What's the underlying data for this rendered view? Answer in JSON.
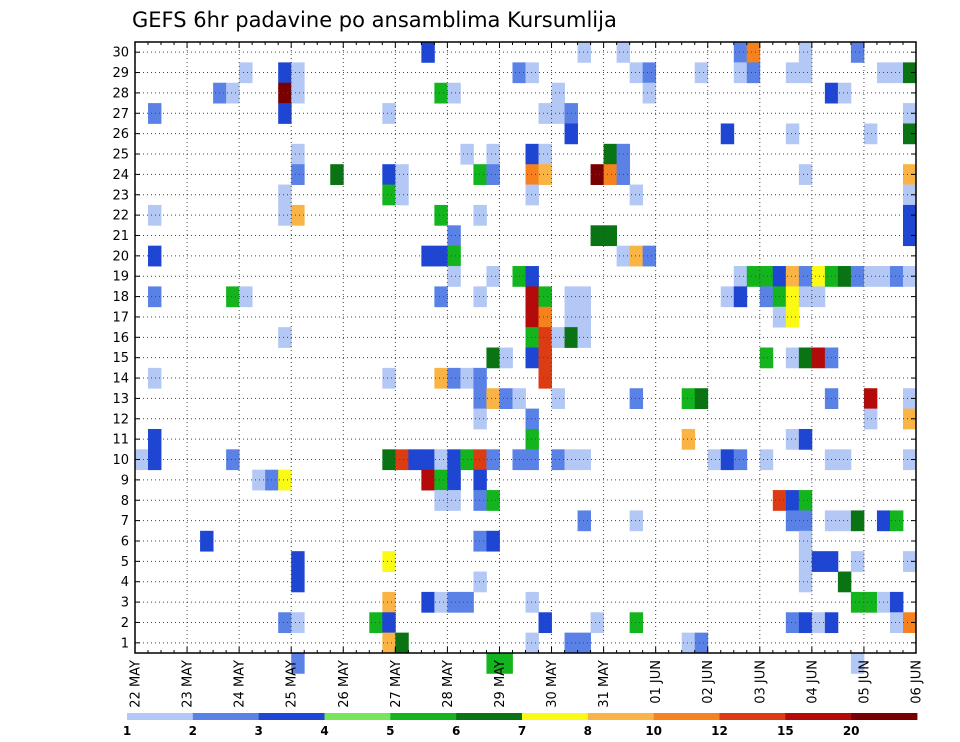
{
  "chart_data": {
    "type": "heatmap",
    "title": "GEFS 6hr padavine po ansamblima Kursumlija",
    "xlabel": "",
    "ylabel": "",
    "x_tick_labels": [
      "22 MAY",
      "23 MAY",
      "24 MAY",
      "25 MAY",
      "26 MAY",
      "27 MAY",
      "28 MAY",
      "29 MAY",
      "30 MAY",
      "31 MAY",
      "01 JUN",
      "02 JUN",
      "03 JUN",
      "04 JUN",
      "05 JUN",
      "06 JUN"
    ],
    "y_tick_labels": [
      "1",
      "2",
      "3",
      "4",
      "5",
      "6",
      "7",
      "8",
      "9",
      "10",
      "11",
      "12",
      "13",
      "14",
      "15",
      "16",
      "17",
      "18",
      "19",
      "20",
      "21",
      "22",
      "23",
      "24",
      "25",
      "26",
      "27",
      "28",
      "29",
      "30"
    ],
    "ylim": [
      0.5,
      30.5
    ],
    "time_steps": 60,
    "grid": true,
    "legend_placement": "bottom",
    "legend": {
      "levels": [
        "1",
        "2",
        "3",
        "4",
        "5",
        "6",
        "7",
        "8",
        "10",
        "12",
        "15",
        "20"
      ],
      "colors": [
        "#b4c8f5",
        "#5a82e6",
        "#1e46d2",
        "#78e65a",
        "#14b41e",
        "#0a7314",
        "#fafa14",
        "#fab446",
        "#f5821e",
        "#dc3c14",
        "#b40a0a",
        "#780000"
      ]
    },
    "cells_note": "each cell: [time step index (0 = 22 MAY 00z, 6-hourly), ensemble member, colour class 1-12]",
    "cells": [
      [
        37,
        30,
        1
      ],
      [
        22,
        30,
        3
      ],
      [
        34,
        30,
        1
      ],
      [
        46,
        30,
        2
      ],
      [
        47,
        30,
        9
      ],
      [
        51,
        30,
        1
      ],
      [
        55,
        30,
        2
      ],
      [
        8,
        29,
        1
      ],
      [
        11,
        29,
        3
      ],
      [
        12,
        29,
        1
      ],
      [
        29,
        29,
        2
      ],
      [
        30,
        29,
        1
      ],
      [
        38,
        29,
        1
      ],
      [
        39,
        29,
        2
      ],
      [
        43,
        29,
        1
      ],
      [
        46,
        29,
        1
      ],
      [
        47,
        29,
        2
      ],
      [
        50,
        29,
        1
      ],
      [
        51,
        29,
        1
      ],
      [
        57,
        29,
        1
      ],
      [
        58,
        29,
        1
      ],
      [
        59,
        29,
        6
      ],
      [
        6,
        28,
        2
      ],
      [
        7,
        28,
        1
      ],
      [
        11,
        28,
        12
      ],
      [
        12,
        28,
        1
      ],
      [
        23,
        28,
        5
      ],
      [
        24,
        28,
        1
      ],
      [
        32,
        28,
        1
      ],
      [
        39,
        28,
        1
      ],
      [
        53,
        28,
        3
      ],
      [
        54,
        28,
        1
      ],
      [
        1,
        27,
        2
      ],
      [
        11,
        27,
        3
      ],
      [
        19,
        27,
        1
      ],
      [
        31,
        27,
        1
      ],
      [
        32,
        27,
        1
      ],
      [
        33,
        27,
        2
      ],
      [
        59,
        27,
        1
      ],
      [
        33,
        26,
        3
      ],
      [
        45,
        26,
        3
      ],
      [
        50,
        26,
        1
      ],
      [
        56,
        26,
        1
      ],
      [
        59,
        26,
        6
      ],
      [
        12,
        25,
        1
      ],
      [
        25,
        25,
        1
      ],
      [
        27,
        25,
        1
      ],
      [
        30,
        25,
        3
      ],
      [
        31,
        25,
        1
      ],
      [
        36,
        25,
        6
      ],
      [
        37,
        25,
        2
      ],
      [
        12,
        24,
        2
      ],
      [
        15,
        24,
        6
      ],
      [
        19,
        24,
        3
      ],
      [
        20,
        24,
        1
      ],
      [
        26,
        24,
        5
      ],
      [
        27,
        24,
        2
      ],
      [
        30,
        24,
        9
      ],
      [
        31,
        24,
        8
      ],
      [
        35,
        24,
        12
      ],
      [
        36,
        24,
        9
      ],
      [
        37,
        24,
        2
      ],
      [
        51,
        24,
        1
      ],
      [
        59,
        24,
        8
      ],
      [
        11,
        23,
        1
      ],
      [
        19,
        23,
        5
      ],
      [
        20,
        23,
        1
      ],
      [
        30,
        23,
        1
      ],
      [
        38,
        23,
        1
      ],
      [
        59,
        23,
        1
      ],
      [
        1,
        22,
        1
      ],
      [
        11,
        22,
        1
      ],
      [
        12,
        22,
        8
      ],
      [
        23,
        22,
        5
      ],
      [
        26,
        22,
        1
      ],
      [
        59,
        22,
        3
      ],
      [
        24,
        21,
        2
      ],
      [
        35,
        21,
        6
      ],
      [
        36,
        21,
        6
      ],
      [
        59,
        21,
        3
      ],
      [
        1,
        20,
        3
      ],
      [
        22,
        20,
        3
      ],
      [
        23,
        20,
        3
      ],
      [
        24,
        20,
        5
      ],
      [
        37,
        20,
        1
      ],
      [
        38,
        20,
        8
      ],
      [
        39,
        20,
        2
      ],
      [
        24,
        19,
        1
      ],
      [
        27,
        19,
        1
      ],
      [
        29,
        19,
        5
      ],
      [
        30,
        19,
        3
      ],
      [
        46,
        19,
        1
      ],
      [
        47,
        19,
        5
      ],
      [
        48,
        19,
        5
      ],
      [
        49,
        19,
        3
      ],
      [
        50,
        19,
        8
      ],
      [
        51,
        19,
        2
      ],
      [
        52,
        19,
        7
      ],
      [
        53,
        19,
        5
      ],
      [
        54,
        19,
        6
      ],
      [
        55,
        19,
        2
      ],
      [
        56,
        19,
        1
      ],
      [
        57,
        19,
        1
      ],
      [
        58,
        19,
        2
      ],
      [
        59,
        19,
        1
      ],
      [
        1,
        18,
        2
      ],
      [
        7,
        18,
        5
      ],
      [
        8,
        18,
        1
      ],
      [
        23,
        18,
        2
      ],
      [
        26,
        18,
        1
      ],
      [
        30,
        18,
        11
      ],
      [
        31,
        18,
        5
      ],
      [
        33,
        18,
        1
      ],
      [
        34,
        18,
        1
      ],
      [
        45,
        18,
        1
      ],
      [
        46,
        18,
        3
      ],
      [
        48,
        18,
        2
      ],
      [
        49,
        18,
        5
      ],
      [
        50,
        18,
        7
      ],
      [
        51,
        18,
        1
      ],
      [
        52,
        18,
        1
      ],
      [
        30,
        17,
        11
      ],
      [
        31,
        17,
        9
      ],
      [
        33,
        17,
        1
      ],
      [
        34,
        17,
        1
      ],
      [
        49,
        17,
        1
      ],
      [
        50,
        17,
        7
      ],
      [
        11,
        16,
        1
      ],
      [
        30,
        16,
        5
      ],
      [
        31,
        16,
        10
      ],
      [
        32,
        16,
        1
      ],
      [
        33,
        16,
        6
      ],
      [
        34,
        16,
        1
      ],
      [
        27,
        15,
        6
      ],
      [
        28,
        15,
        1
      ],
      [
        30,
        15,
        3
      ],
      [
        31,
        15,
        10
      ],
      [
        48,
        15,
        5
      ],
      [
        50,
        15,
        1
      ],
      [
        51,
        15,
        6
      ],
      [
        52,
        15,
        11
      ],
      [
        53,
        15,
        2
      ],
      [
        1,
        14,
        1
      ],
      [
        19,
        14,
        1
      ],
      [
        23,
        14,
        8
      ],
      [
        24,
        14,
        2
      ],
      [
        25,
        14,
        1
      ],
      [
        26,
        14,
        2
      ],
      [
        31,
        14,
        10
      ],
      [
        26,
        13,
        2
      ],
      [
        27,
        13,
        8
      ],
      [
        28,
        13,
        2
      ],
      [
        29,
        13,
        1
      ],
      [
        32,
        13,
        1
      ],
      [
        38,
        13,
        2
      ],
      [
        42,
        13,
        5
      ],
      [
        43,
        13,
        6
      ],
      [
        53,
        13,
        2
      ],
      [
        56,
        13,
        11
      ],
      [
        59,
        13,
        1
      ],
      [
        26,
        12,
        1
      ],
      [
        30,
        12,
        2
      ],
      [
        56,
        12,
        1
      ],
      [
        59,
        12,
        8
      ],
      [
        1,
        11,
        3
      ],
      [
        30,
        11,
        5
      ],
      [
        42,
        11,
        8
      ],
      [
        50,
        11,
        1
      ],
      [
        51,
        11,
        3
      ],
      [
        0,
        10,
        1
      ],
      [
        1,
        10,
        3
      ],
      [
        7,
        10,
        2
      ],
      [
        19,
        10,
        6
      ],
      [
        20,
        10,
        10
      ],
      [
        21,
        10,
        3
      ],
      [
        22,
        10,
        3
      ],
      [
        23,
        10,
        1
      ],
      [
        24,
        10,
        3
      ],
      [
        25,
        10,
        5
      ],
      [
        26,
        10,
        10
      ],
      [
        27,
        10,
        2
      ],
      [
        29,
        10,
        2
      ],
      [
        30,
        10,
        2
      ],
      [
        32,
        10,
        2
      ],
      [
        33,
        10,
        1
      ],
      [
        34,
        10,
        1
      ],
      [
        44,
        10,
        1
      ],
      [
        45,
        10,
        3
      ],
      [
        46,
        10,
        2
      ],
      [
        48,
        10,
        1
      ],
      [
        53,
        10,
        1
      ],
      [
        54,
        10,
        1
      ],
      [
        59,
        10,
        1
      ],
      [
        9,
        9,
        1
      ],
      [
        10,
        9,
        2
      ],
      [
        11,
        9,
        7
      ],
      [
        22,
        9,
        11
      ],
      [
        23,
        9,
        5
      ],
      [
        24,
        9,
        3
      ],
      [
        26,
        9,
        3
      ],
      [
        23,
        8,
        1
      ],
      [
        24,
        8,
        1
      ],
      [
        26,
        8,
        2
      ],
      [
        27,
        8,
        5
      ],
      [
        49,
        8,
        10
      ],
      [
        50,
        8,
        3
      ],
      [
        51,
        8,
        5
      ],
      [
        34,
        7,
        2
      ],
      [
        38,
        7,
        1
      ],
      [
        50,
        7,
        2
      ],
      [
        51,
        7,
        2
      ],
      [
        53,
        7,
        1
      ],
      [
        54,
        7,
        1
      ],
      [
        55,
        7,
        6
      ],
      [
        57,
        7,
        3
      ],
      [
        58,
        7,
        5
      ],
      [
        5,
        6,
        3
      ],
      [
        26,
        6,
        2
      ],
      [
        27,
        6,
        3
      ],
      [
        51,
        6,
        1
      ],
      [
        12,
        5,
        3
      ],
      [
        19,
        5,
        7
      ],
      [
        51,
        5,
        1
      ],
      [
        52,
        5,
        3
      ],
      [
        53,
        5,
        3
      ],
      [
        55,
        5,
        1
      ],
      [
        59,
        5,
        1
      ],
      [
        12,
        4,
        3
      ],
      [
        26,
        4,
        1
      ],
      [
        51,
        4,
        1
      ],
      [
        54,
        4,
        6
      ],
      [
        19,
        3,
        8
      ],
      [
        22,
        3,
        3
      ],
      [
        23,
        3,
        1
      ],
      [
        24,
        3,
        2
      ],
      [
        25,
        3,
        2
      ],
      [
        30,
        3,
        1
      ],
      [
        55,
        3,
        5
      ],
      [
        56,
        3,
        5
      ],
      [
        57,
        3,
        1
      ],
      [
        58,
        3,
        3
      ],
      [
        11,
        2,
        2
      ],
      [
        12,
        2,
        1
      ],
      [
        18,
        2,
        5
      ],
      [
        19,
        2,
        3
      ],
      [
        31,
        2,
        3
      ],
      [
        35,
        2,
        1
      ],
      [
        38,
        2,
        5
      ],
      [
        50,
        2,
        2
      ],
      [
        51,
        2,
        3
      ],
      [
        52,
        2,
        1
      ],
      [
        53,
        2,
        3
      ],
      [
        58,
        2,
        1
      ],
      [
        59,
        2,
        9
      ],
      [
        19,
        1,
        8
      ],
      [
        20,
        1,
        6
      ],
      [
        30,
        1,
        1
      ],
      [
        33,
        1,
        2
      ],
      [
        34,
        1,
        2
      ],
      [
        42,
        1,
        1
      ],
      [
        43,
        1,
        2
      ],
      [
        12,
        0,
        2
      ],
      [
        27,
        0,
        5
      ],
      [
        28,
        0,
        5
      ],
      [
        55,
        0,
        1
      ]
    ]
  }
}
